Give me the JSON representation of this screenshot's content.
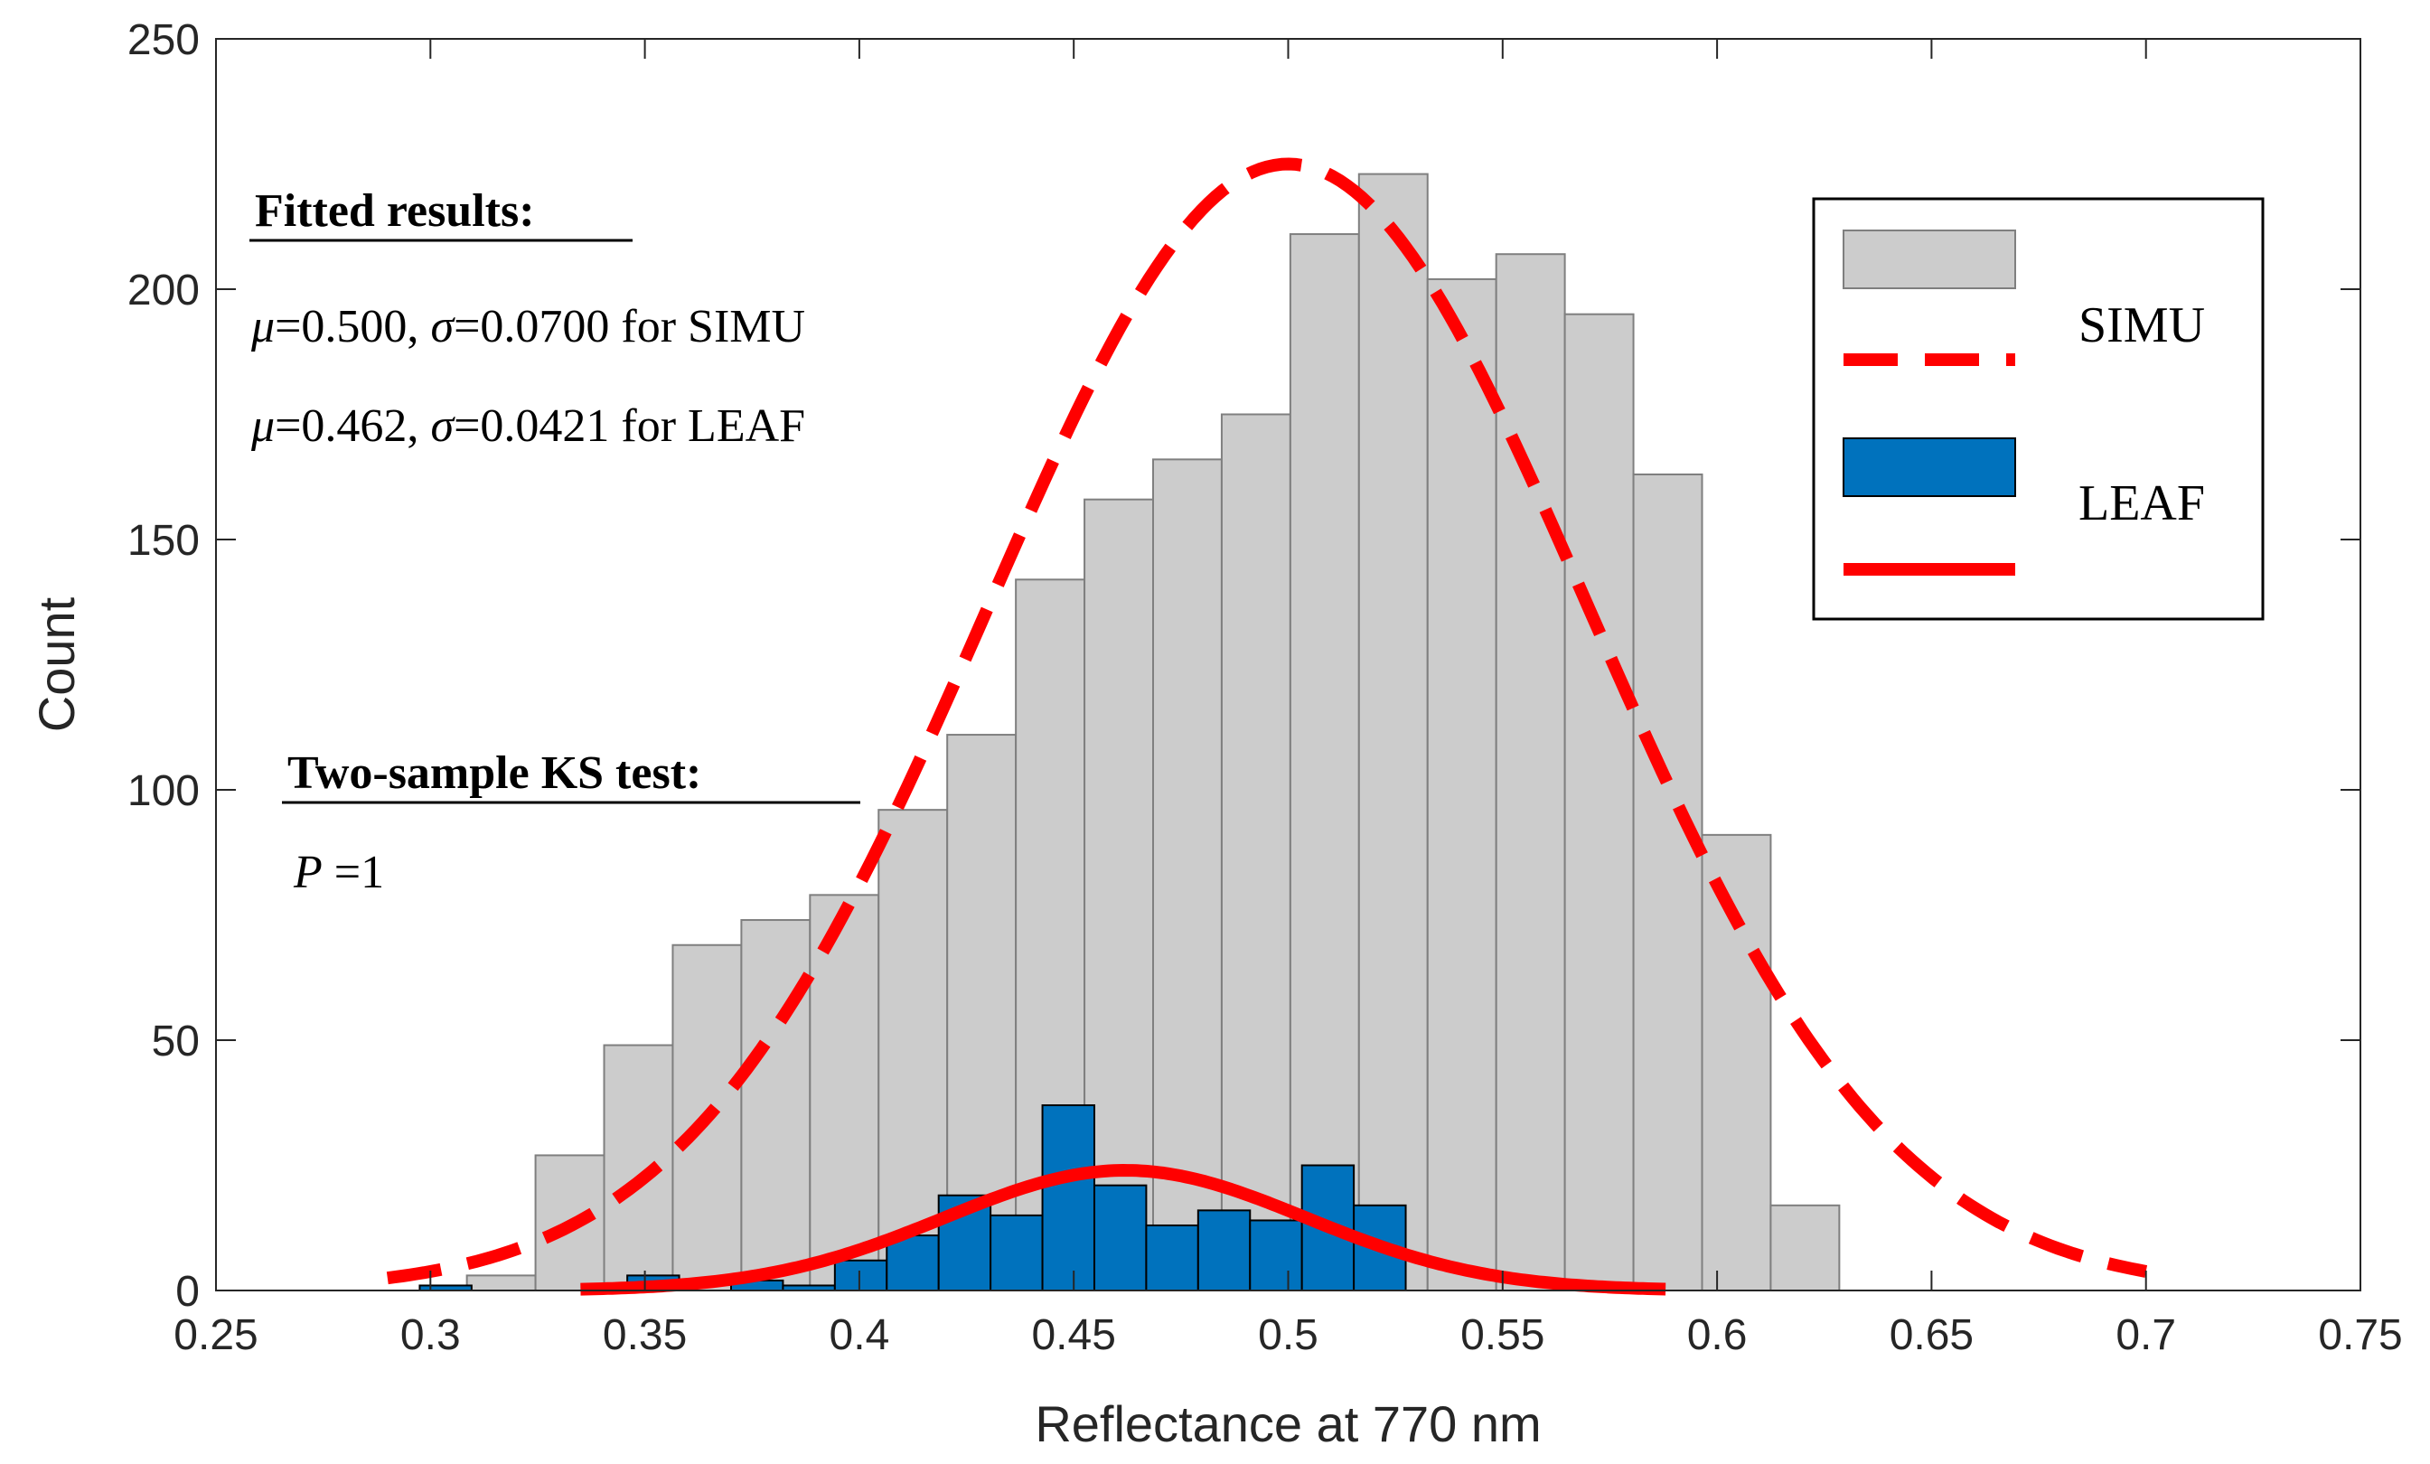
{
  "chart_data": {
    "type": "histogram",
    "xlabel": "Reflectance at 770 nm",
    "ylabel": "Count",
    "xlim": [
      0.25,
      0.75
    ],
    "ylim": [
      0,
      250
    ],
    "xticks": [
      0.25,
      0.3,
      0.35,
      0.4,
      0.45,
      0.5,
      0.55,
      0.6,
      0.65,
      0.7,
      0.75
    ],
    "xtick_labels": [
      "0.25",
      "0.3",
      "0.35",
      "0.4",
      "0.45",
      "0.5",
      "0.55",
      "0.6",
      "0.65",
      "0.7",
      "0.75"
    ],
    "yticks": [
      0,
      50,
      100,
      150,
      200,
      250
    ],
    "ytick_labels": [
      "0",
      "50",
      "100",
      "150",
      "200",
      "250"
    ],
    "series": [
      {
        "name": "SIMU",
        "kind": "histogram",
        "color": "#cccccc",
        "edge_color": "#7f7f7f",
        "bin_start": 0.3085,
        "bin_width": 0.016,
        "values": [
          3,
          27,
          49,
          69,
          74,
          79,
          96,
          111,
          142,
          158,
          166,
          175,
          211,
          223,
          202,
          207,
          195,
          163,
          91,
          17
        ]
      },
      {
        "name": "LEAF",
        "kind": "histogram",
        "color": "#0072bd",
        "edge_color": "#000000",
        "bin_start": 0.2975,
        "bin_width": 0.0121,
        "values": [
          1,
          0,
          0,
          0,
          3,
          0,
          2,
          1,
          6,
          11,
          19,
          15,
          37,
          21,
          13,
          16,
          14,
          25,
          17,
          0
        ]
      },
      {
        "name": "SIMU fit",
        "kind": "normal-curve",
        "style": "dashed",
        "color": "#ff0000",
        "mu": 0.5,
        "sigma": 0.07,
        "peak": 225,
        "x_range": [
          0.29,
          0.7
        ]
      },
      {
        "name": "LEAF fit",
        "kind": "normal-curve",
        "style": "solid",
        "color": "#ff0000",
        "mu": 0.462,
        "sigma": 0.0421,
        "peak": 24,
        "x_range": [
          0.335,
          0.588
        ]
      }
    ],
    "legend": {
      "position": "top-right",
      "entries": [
        "SIMU",
        "LEAF"
      ]
    },
    "annotations": {
      "fitted_title": "Fitted results:",
      "fit_simu": {
        "mu_sym": "μ",
        "mu_val": "=0.500, ",
        "sigma_sym": "σ",
        "sigma_val": "=0.0700 for SIMU"
      },
      "fit_leaf": {
        "mu_sym": "μ",
        "mu_val": "=0.462, ",
        "sigma_sym": "σ",
        "sigma_val": "=0.0421 for LEAF"
      },
      "ks_title": "Two-sample KS  test:",
      "ks_p_sym": "P",
      "ks_p_val": " =1"
    }
  }
}
